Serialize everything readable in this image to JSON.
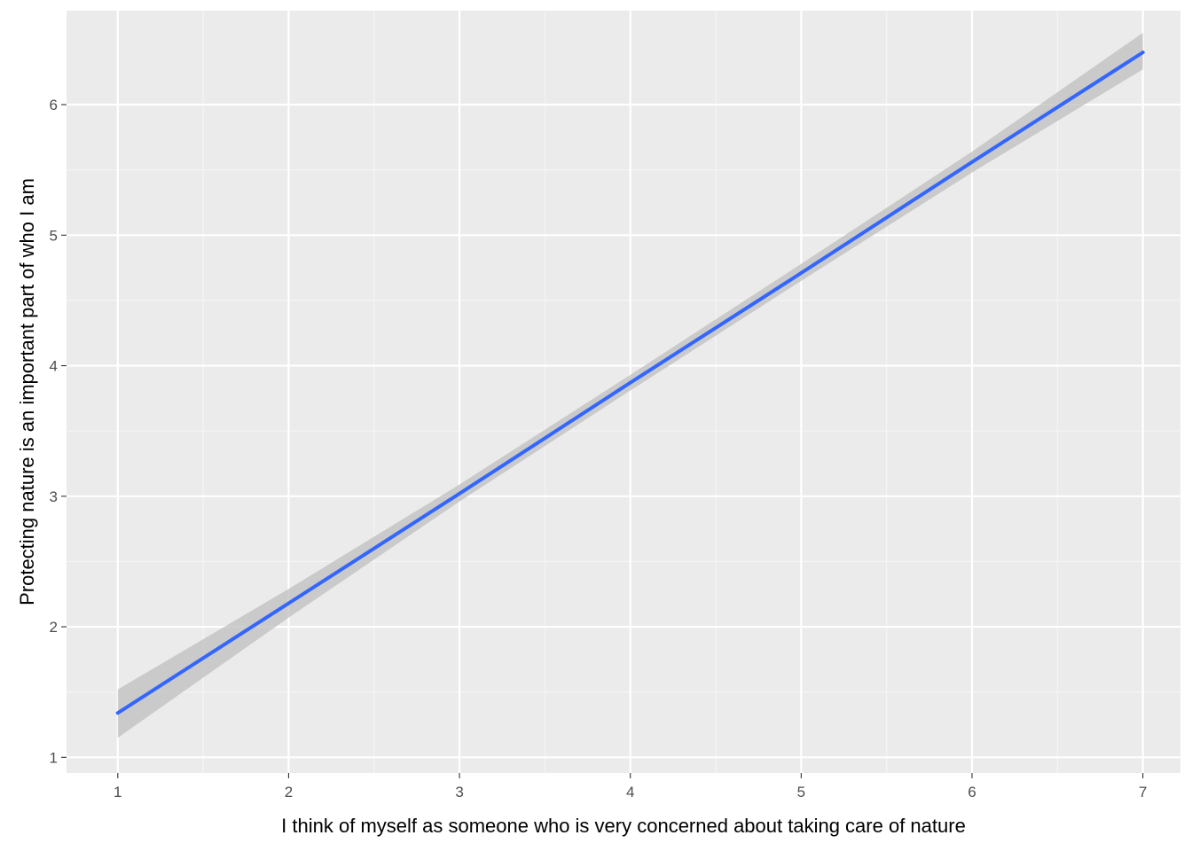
{
  "chart_data": {
    "type": "line",
    "title": "",
    "xlabel": "I think of myself as someone who is very concerned about taking care of nature",
    "ylabel": "Protecting nature is an important part of who I am",
    "xlim": [
      0.7,
      7.22
    ],
    "ylim": [
      0.88,
      6.72
    ],
    "x_ticks": [
      1,
      2,
      3,
      4,
      5,
      6,
      7
    ],
    "y_ticks": [
      1,
      2,
      3,
      4,
      5,
      6
    ],
    "grid": true,
    "legend": "none",
    "series": [
      {
        "x": [
          1,
          2,
          3,
          4,
          5,
          6,
          7
        ],
        "y": [
          1.34,
          2.18,
          3.02,
          3.87,
          4.71,
          5.56,
          6.4
        ],
        "ci_lower": [
          1.15,
          2.07,
          2.96,
          3.81,
          4.65,
          5.48,
          6.27
        ],
        "ci_upper": [
          1.52,
          2.29,
          3.09,
          3.93,
          4.78,
          5.64,
          6.55
        ]
      }
    ],
    "colors": {
      "panel_background": "#ebebeb",
      "grid_major": "#ffffff",
      "grid_minor": "#f5f5f5",
      "line": "#3366ff",
      "ribbon": "#bfbfbf",
      "tick_text": "#4d4d4d",
      "tick_mark": "#333333"
    }
  }
}
